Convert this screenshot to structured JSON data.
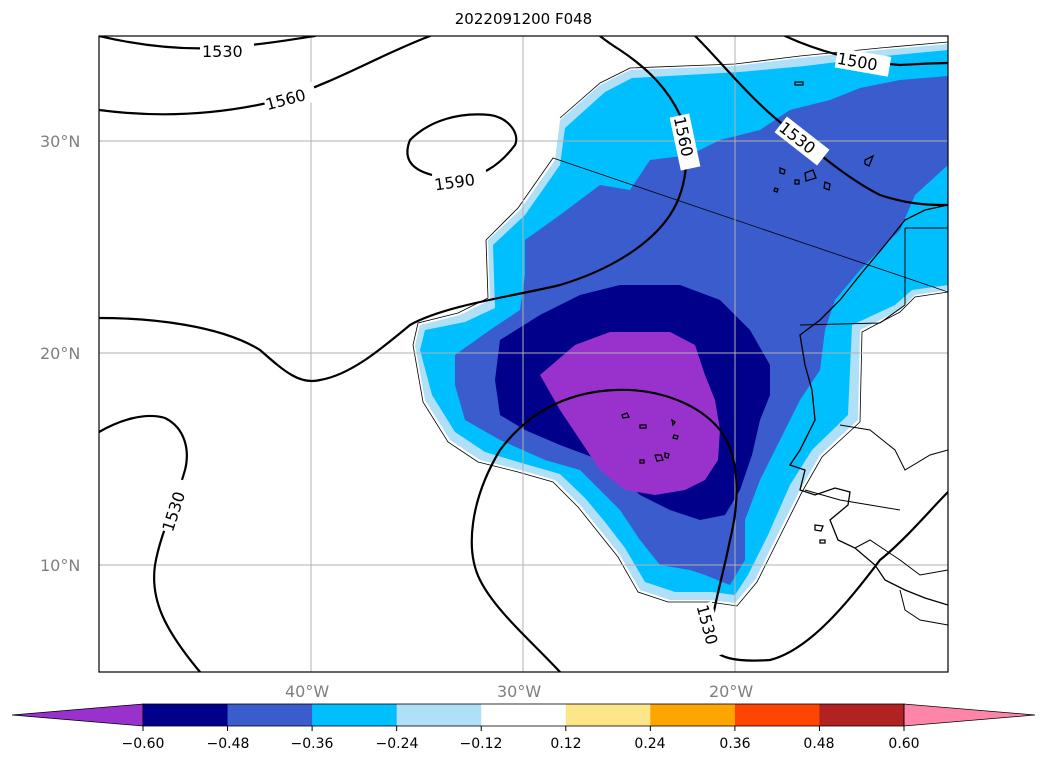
{
  "title": "2022091200 F048",
  "axes": {
    "lat_labels": [
      "30°N",
      "20°N",
      "10°N"
    ],
    "lon_labels": [
      "40°W",
      "30°W",
      "20°W"
    ]
  },
  "contour_labels": [
    "1500",
    "1530",
    "1560",
    "1590"
  ],
  "colorbar": {
    "ticks": [
      "−0.60",
      "−0.48",
      "−0.36",
      "−0.24",
      "−0.12",
      "0.12",
      "0.24",
      "0.36",
      "0.48",
      "0.60"
    ],
    "colors": [
      "#9932cc",
      "#00008b",
      "#3a5ccc",
      "#00bfff",
      "#b0e0f8",
      "#ffffff",
      "#fde68a",
      "#ffa500",
      "#ff4500",
      "#b22222",
      "#ff85a8"
    ]
  }
}
